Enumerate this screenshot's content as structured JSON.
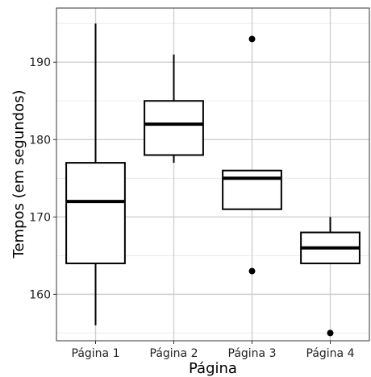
{
  "chart_data": {
    "type": "boxplot",
    "xlabel": "Página",
    "ylabel": "Tempos (em segundos)",
    "categories": [
      "Página 1",
      "Página 2",
      "Página 3",
      "Página 4"
    ],
    "ylim": [
      154,
      197
    ],
    "yticks": [
      160,
      170,
      180,
      190
    ],
    "grid": true,
    "boxes": [
      {
        "category": "Página 1",
        "whisker_low": 156,
        "q1": 164,
        "median": 172,
        "q3": 177,
        "whisker_high": 195,
        "outliers": []
      },
      {
        "category": "Página 2",
        "whisker_low": 177,
        "q1": 178,
        "median": 182,
        "q3": 185,
        "whisker_high": 191,
        "outliers": []
      },
      {
        "category": "Página 3",
        "whisker_low": 171,
        "q1": 171,
        "median": 175,
        "q3": 176,
        "whisker_high": 176,
        "outliers": [
          193,
          163
        ]
      },
      {
        "category": "Página 4",
        "whisker_low": 164,
        "q1": 164,
        "median": 166,
        "q3": 168,
        "whisker_high": 170,
        "outliers": [
          155
        ]
      }
    ]
  }
}
